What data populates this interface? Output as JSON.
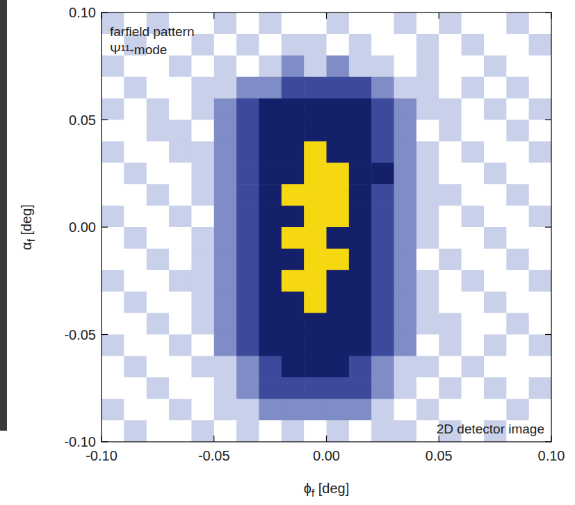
{
  "chart_data": {
    "type": "heatmap",
    "annotations": [
      "farfield pattern",
      "Ψ¹¹-mode",
      "2D detector image"
    ],
    "x_label": "ϕf [deg]",
    "y_label": "αf [deg]",
    "xlim": [
      -0.1,
      0.1
    ],
    "ylim": [
      -0.1,
      0.1
    ],
    "xticks": [
      {
        "value": -0.1,
        "label": "-0.10"
      },
      {
        "value": -0.05,
        "label": "-0.05"
      },
      {
        "value": 0,
        "label": "0.00"
      },
      {
        "value": 0.05,
        "label": "0.05"
      },
      {
        "value": 0.1,
        "label": "0.10"
      }
    ],
    "yticks": [
      {
        "value": -0.1,
        "label": "-0.10"
      },
      {
        "value": -0.05,
        "label": "-0.05"
      },
      {
        "value": 0,
        "label": "0.00"
      },
      {
        "value": 0.05,
        "label": "0.05"
      },
      {
        "value": 0.1,
        "label": "0.10"
      }
    ],
    "x": [
      -0.095,
      -0.085,
      -0.075,
      -0.065,
      -0.055,
      -0.045,
      -0.035,
      -0.025,
      -0.015,
      -0.005,
      0.005,
      0.015,
      0.025,
      0.035,
      0.045,
      0.055,
      0.065,
      0.075,
      0.085,
      0.095
    ],
    "y": [
      0.095,
      0.085,
      0.075,
      0.065,
      0.055,
      0.045,
      0.035,
      0.025,
      0.015,
      0.005,
      -0.005,
      -0.015,
      -0.025,
      -0.035,
      -0.045,
      -0.055,
      -0.065,
      -0.075,
      -0.085,
      -0.095
    ],
    "zlim": [
      0,
      5
    ],
    "colors": [
      "#ffffff",
      "#c9d0ea",
      "#7f8cc6",
      "#3d4a9c",
      "#15206b",
      "#f5d80f"
    ],
    "cells": [
      [
        1,
        0,
        1,
        0,
        0,
        1,
        0,
        1,
        0,
        0,
        1,
        0,
        0,
        1,
        0,
        1,
        0,
        0,
        1,
        0
      ],
      [
        0,
        1,
        0,
        0,
        1,
        0,
        1,
        0,
        1,
        1,
        0,
        1,
        0,
        0,
        1,
        0,
        1,
        0,
        0,
        1
      ],
      [
        1,
        0,
        0,
        1,
        0,
        1,
        0,
        1,
        2,
        1,
        2,
        1,
        1,
        0,
        1,
        0,
        0,
        1,
        0,
        0
      ],
      [
        0,
        1,
        0,
        0,
        1,
        1,
        2,
        2,
        3,
        3,
        3,
        3,
        2,
        1,
        1,
        0,
        1,
        0,
        1,
        0
      ],
      [
        1,
        0,
        1,
        0,
        1,
        2,
        3,
        4,
        4,
        4,
        4,
        4,
        3,
        2,
        1,
        1,
        0,
        1,
        0,
        1
      ],
      [
        0,
        0,
        1,
        1,
        0,
        2,
        3,
        4,
        4,
        4,
        4,
        4,
        3,
        2,
        0,
        1,
        0,
        0,
        1,
        0
      ],
      [
        1,
        0,
        0,
        1,
        1,
        2,
        3,
        4,
        4,
        5,
        4,
        4,
        3,
        2,
        1,
        0,
        1,
        0,
        0,
        1
      ],
      [
        0,
        1,
        0,
        0,
        1,
        2,
        3,
        4,
        4,
        5,
        5,
        4,
        4,
        2,
        1,
        0,
        0,
        1,
        0,
        0
      ],
      [
        0,
        0,
        1,
        0,
        1,
        2,
        3,
        4,
        5,
        5,
        5,
        4,
        3,
        2,
        1,
        1,
        0,
        0,
        1,
        0
      ],
      [
        1,
        0,
        0,
        1,
        0,
        2,
        3,
        4,
        4,
        5,
        5,
        4,
        3,
        2,
        1,
        0,
        1,
        0,
        0,
        1
      ],
      [
        0,
        1,
        0,
        0,
        1,
        2,
        3,
        4,
        5,
        5,
        4,
        4,
        3,
        2,
        1,
        0,
        0,
        1,
        0,
        0
      ],
      [
        0,
        0,
        1,
        0,
        1,
        2,
        3,
        4,
        4,
        5,
        5,
        4,
        3,
        2,
        0,
        1,
        0,
        0,
        1,
        0
      ],
      [
        1,
        0,
        0,
        1,
        1,
        2,
        3,
        4,
        5,
        5,
        4,
        4,
        3,
        2,
        1,
        0,
        1,
        0,
        0,
        1
      ],
      [
        0,
        1,
        0,
        0,
        1,
        2,
        3,
        4,
        4,
        5,
        4,
        4,
        3,
        2,
        1,
        0,
        0,
        1,
        0,
        0
      ],
      [
        0,
        0,
        1,
        0,
        1,
        2,
        3,
        4,
        4,
        4,
        4,
        4,
        3,
        2,
        1,
        1,
        0,
        0,
        1,
        0
      ],
      [
        1,
        0,
        0,
        1,
        0,
        2,
        3,
        4,
        4,
        4,
        4,
        4,
        3,
        2,
        0,
        1,
        0,
        1,
        0,
        1
      ],
      [
        0,
        1,
        0,
        0,
        1,
        1,
        2,
        3,
        4,
        4,
        4,
        3,
        2,
        1,
        1,
        0,
        1,
        0,
        0,
        0
      ],
      [
        0,
        0,
        1,
        0,
        0,
        1,
        2,
        3,
        3,
        3,
        3,
        3,
        2,
        1,
        0,
        1,
        0,
        1,
        0,
        1
      ],
      [
        1,
        0,
        0,
        1,
        0,
        1,
        1,
        2,
        2,
        2,
        2,
        2,
        1,
        0,
        1,
        0,
        0,
        0,
        1,
        0
      ],
      [
        0,
        1,
        0,
        0,
        1,
        0,
        1,
        0,
        1,
        0,
        1,
        0,
        1,
        1,
        0,
        1,
        0,
        1,
        0,
        0
      ]
    ]
  }
}
